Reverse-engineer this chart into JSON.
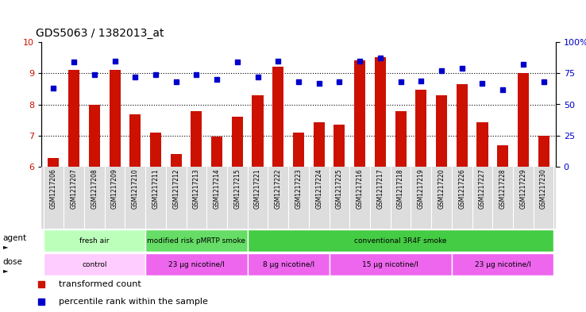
{
  "title": "GDS5063 / 1382013_at",
  "samples": [
    "GSM1217206",
    "GSM1217207",
    "GSM1217208",
    "GSM1217209",
    "GSM1217210",
    "GSM1217211",
    "GSM1217212",
    "GSM1217213",
    "GSM1217214",
    "GSM1217215",
    "GSM1217221",
    "GSM1217222",
    "GSM1217223",
    "GSM1217224",
    "GSM1217225",
    "GSM1217216",
    "GSM1217217",
    "GSM1217218",
    "GSM1217219",
    "GSM1217220",
    "GSM1217226",
    "GSM1217227",
    "GSM1217228",
    "GSM1217229",
    "GSM1217230"
  ],
  "bar_values": [
    6.28,
    9.1,
    8.0,
    9.12,
    7.68,
    7.1,
    6.42,
    7.78,
    6.97,
    7.6,
    8.3,
    9.22,
    7.1,
    7.42,
    7.35,
    9.42,
    9.52,
    7.78,
    8.48,
    8.3,
    8.65,
    7.42,
    6.68,
    9.0,
    7.0
  ],
  "dot_values": [
    63,
    84,
    74,
    85,
    72,
    74,
    68,
    74,
    70,
    84,
    72,
    85,
    68,
    67,
    68,
    85,
    87,
    68,
    69,
    77,
    79,
    67,
    62,
    82,
    68
  ],
  "bar_color": "#cc1100",
  "dot_color": "#0000cc",
  "y_min": 6,
  "y_max": 10,
  "yticks_left": [
    6,
    7,
    8,
    9,
    10
  ],
  "yticks_right": [
    0,
    25,
    50,
    75,
    100
  ],
  "ytick_right_labels": [
    "0",
    "25",
    "50",
    "75",
    "100%"
  ],
  "grid_lines": [
    7,
    8,
    9
  ],
  "agent_groups": [
    {
      "label": "fresh air",
      "span": [
        0,
        5
      ],
      "color": "#bbffbb"
    },
    {
      "label": "modified risk pMRTP smoke",
      "span": [
        5,
        10
      ],
      "color": "#66dd66"
    },
    {
      "label": "conventional 3R4F smoke",
      "span": [
        10,
        25
      ],
      "color": "#44cc44"
    }
  ],
  "dose_groups": [
    {
      "label": "control",
      "span": [
        0,
        5
      ],
      "color": "#ffccff"
    },
    {
      "label": "23 μg nicotine/l",
      "span": [
        5,
        10
      ],
      "color": "#ee66ee"
    },
    {
      "label": "8 μg nicotine/l",
      "span": [
        10,
        14
      ],
      "color": "#ee66ee"
    },
    {
      "label": "15 μg nicotine/l",
      "span": [
        14,
        20
      ],
      "color": "#ee66ee"
    },
    {
      "label": "23 μg nicotine/l",
      "span": [
        20,
        25
      ],
      "color": "#ee66ee"
    }
  ],
  "legend_red_label": "transformed count",
  "legend_blue_label": "percentile rank within the sample",
  "xtick_bg": "#dddddd"
}
